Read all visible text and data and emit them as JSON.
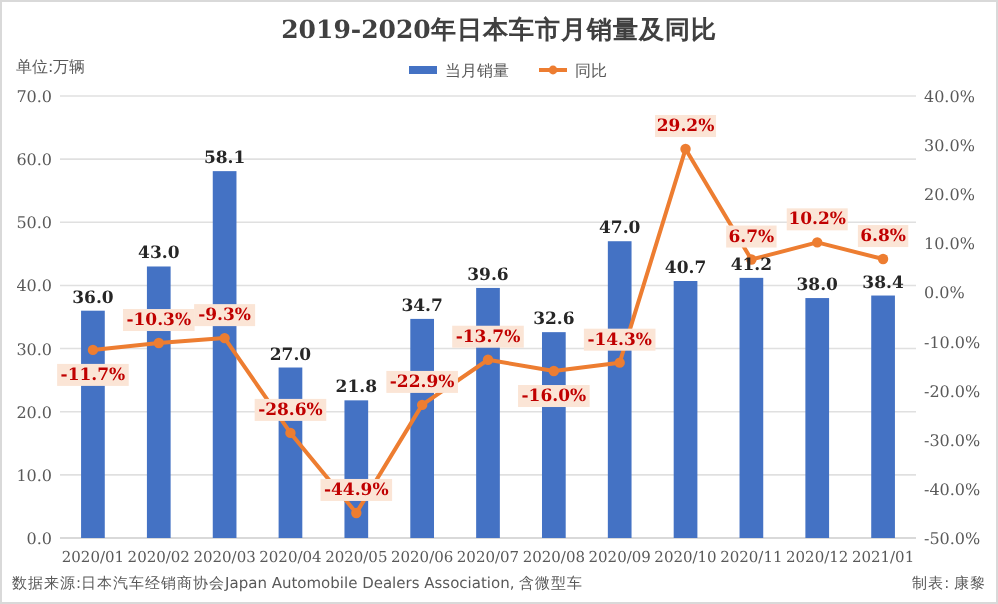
{
  "chart_data": {
    "type": "bar",
    "title": "2019-2020年日本车市月销量及同比",
    "ylabel": "单位:万辆",
    "categories": [
      "2020/01",
      "2020/02",
      "2020/03",
      "2020/04",
      "2020/05",
      "2020/06",
      "2020/07",
      "2020/08",
      "2020/09",
      "2020/10",
      "2020/11",
      "2020/12",
      "2021/01"
    ],
    "series": [
      {
        "name": "当月销量",
        "color": "#4472c4",
        "values": [
          36.0,
          43.0,
          58.1,
          27.0,
          21.8,
          34.7,
          39.6,
          32.6,
          47.0,
          40.7,
          41.2,
          38.0,
          38.4
        ],
        "value_labels": [
          "36.0",
          "43.0",
          "58.1",
          "27.0",
          "21.8",
          "34.7",
          "39.6",
          "32.6",
          "47.0",
          "40.7",
          "41.2",
          "38.0",
          "38.4"
        ]
      },
      {
        "name": "同比",
        "type": "line",
        "axis": "y2",
        "color": "#ed7d31",
        "marker": "circle",
        "values": [
          -11.7,
          -10.3,
          -9.3,
          -28.6,
          -44.9,
          -22.9,
          -13.7,
          -16.0,
          -14.3,
          29.2,
          6.7,
          10.2,
          6.8
        ],
        "value_labels": [
          "-11.7%",
          "-10.3%",
          "-9.3%",
          "-28.6%",
          "-44.9%",
          "-22.9%",
          "-13.7%",
          "-16.0%",
          "-14.3%",
          "29.2%",
          "6.7%",
          "10.2%",
          "6.8%"
        ]
      }
    ],
    "ylim": [
      0,
      70
    ],
    "yticks": [
      {
        "value": 0,
        "label": "0.0"
      },
      {
        "value": 10,
        "label": "10.0"
      },
      {
        "value": 20,
        "label": "20.0"
      },
      {
        "value": 30,
        "label": "30.0"
      },
      {
        "value": 40,
        "label": "40.0"
      },
      {
        "value": 50,
        "label": "50.0"
      },
      {
        "value": 60,
        "label": "60.0"
      },
      {
        "value": 70,
        "label": "70.0"
      }
    ],
    "y2lim": [
      -50,
      40
    ],
    "y2ticks": [
      {
        "value": -50,
        "label": "-50.0%"
      },
      {
        "value": -40,
        "label": "-40.0%"
      },
      {
        "value": -30,
        "label": "-30.0%"
      },
      {
        "value": -20,
        "label": "-20.0%"
      },
      {
        "value": -10,
        "label": "-10.0%"
      },
      {
        "value": 0,
        "label": "0.0%"
      },
      {
        "value": 10,
        "label": "10.0%"
      },
      {
        "value": 20,
        "label": "20.0%"
      },
      {
        "value": 30,
        "label": "30.0%"
      },
      {
        "value": 40,
        "label": "40.0%"
      }
    ],
    "grid": "y",
    "legend": "top",
    "annotations": [
      "数据来源:日本汽车经销商协会Japan Automobile Dealers Association, 含微型车",
      "制表: 康黎"
    ]
  }
}
